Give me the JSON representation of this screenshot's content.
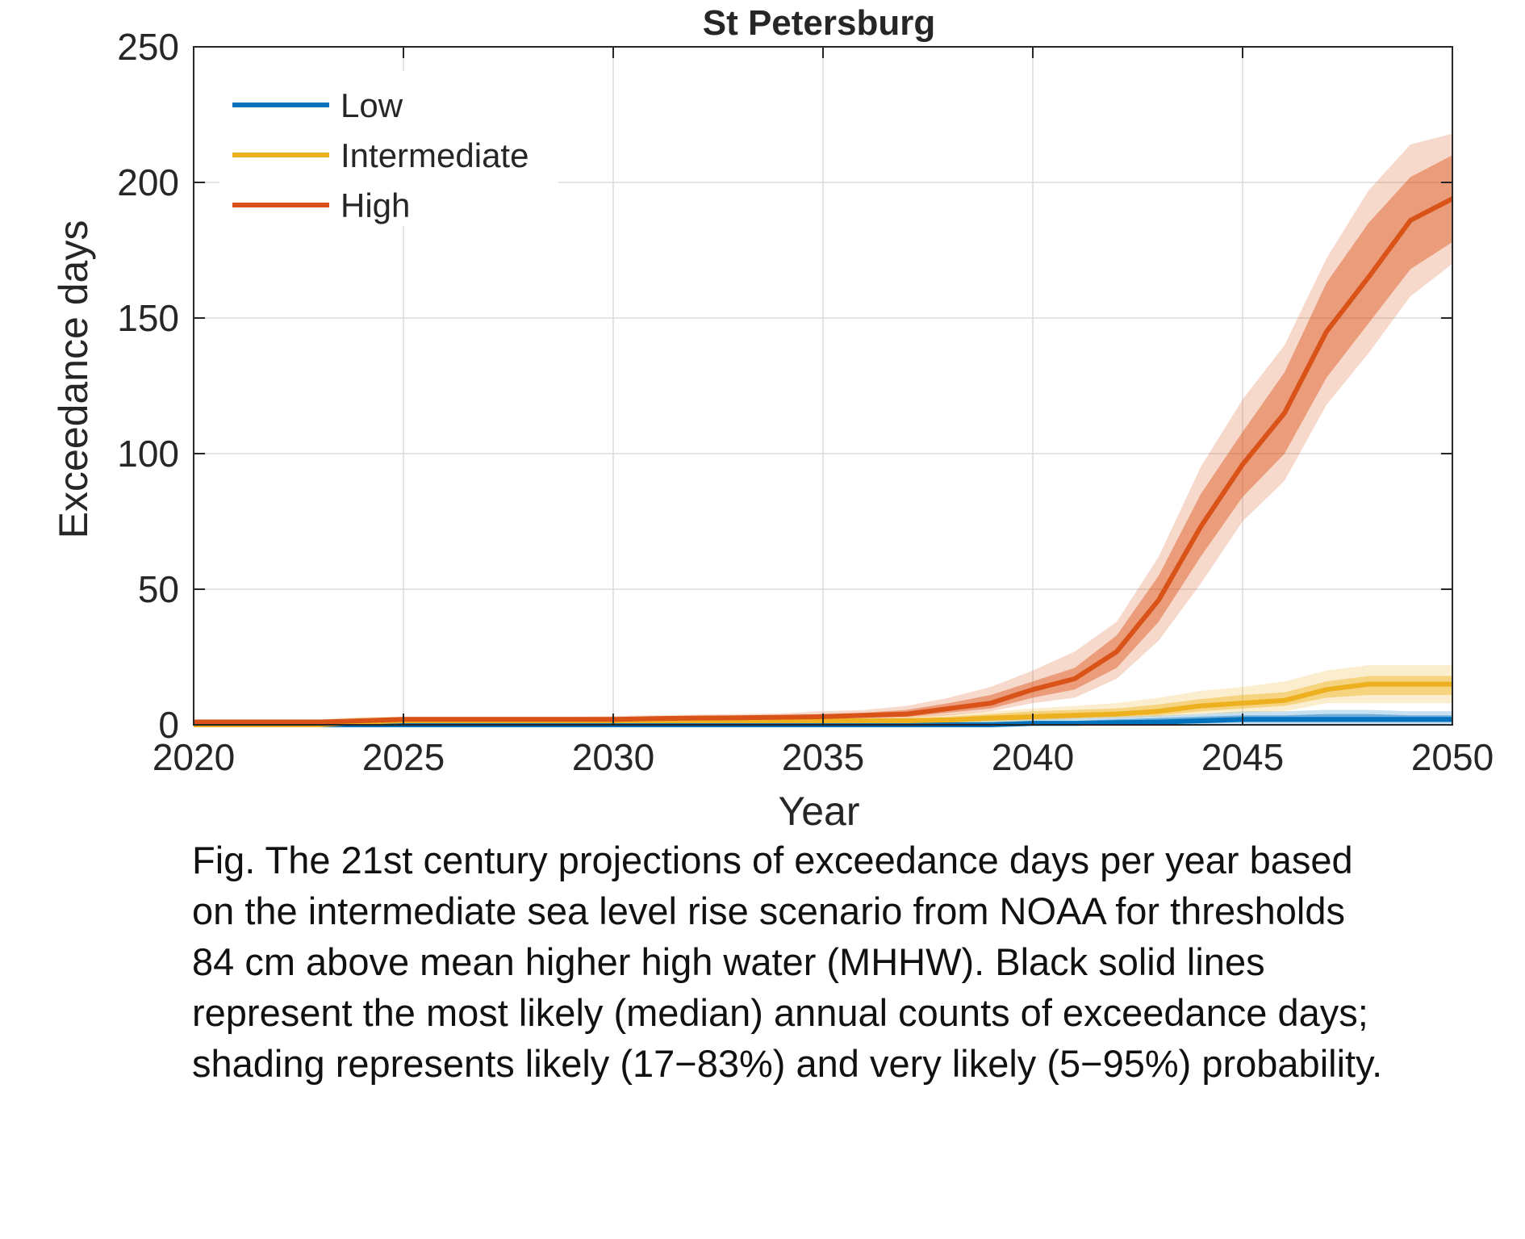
{
  "colors": {
    "low": "#0072BD",
    "intermediate": "#EDB120",
    "high": "#D95319",
    "axis": "#262626",
    "grid": "#dcdcdc",
    "text": "#262626"
  },
  "chart_data": {
    "type": "line",
    "title": "St  Petersburg",
    "xlabel": "Year",
    "ylabel": "Exceedance days",
    "xlim": [
      2020,
      2050
    ],
    "ylim": [
      0,
      250
    ],
    "xticks": [
      "2020",
      "2025",
      "2030",
      "2035",
      "2040",
      "2045",
      "2050"
    ],
    "yticks": [
      "0",
      "50",
      "100",
      "150",
      "200",
      "250"
    ],
    "grid": true,
    "legend_position": "top-left",
    "x": [
      2020,
      2021,
      2022,
      2023,
      2024,
      2025,
      2026,
      2027,
      2028,
      2029,
      2030,
      2031,
      2032,
      2033,
      2034,
      2035,
      2036,
      2037,
      2038,
      2039,
      2040,
      2041,
      2042,
      2043,
      2044,
      2045,
      2046,
      2047,
      2048,
      2049,
      2050
    ],
    "series": [
      {
        "name": "Low",
        "color": "#0072BD",
        "median": [
          0,
          0,
          0,
          0,
          0,
          0,
          0,
          0,
          0,
          0,
          0,
          0,
          0,
          0,
          0,
          0,
          0,
          0,
          0,
          0,
          0.5,
          0.5,
          0.8,
          1,
          1.5,
          2,
          2,
          2,
          2,
          2,
          2
        ],
        "likely_lo": [
          0,
          0,
          0,
          0,
          0,
          0,
          0,
          0,
          0,
          0,
          0,
          0,
          0,
          0,
          0,
          0,
          0,
          0,
          0,
          0,
          0,
          0,
          0,
          0.3,
          0.5,
          1,
          1,
          1,
          1,
          1,
          1
        ],
        "likely_hi": [
          1,
          1,
          1,
          1,
          1,
          1,
          1,
          1,
          1,
          1,
          1,
          1,
          1,
          1,
          1,
          1,
          1,
          1,
          1,
          1,
          1.5,
          1.5,
          2,
          2.5,
          3,
          3.5,
          3.5,
          4,
          4,
          3.5,
          3.5
        ],
        "vlikely_lo": [
          0,
          0,
          0,
          0,
          0,
          0,
          0,
          0,
          0,
          0,
          0,
          0,
          0,
          0,
          0,
          0,
          0,
          0,
          0,
          0,
          0,
          0,
          0,
          0,
          0,
          0,
          0,
          0,
          0,
          0,
          0
        ],
        "vlikely_hi": [
          2,
          2,
          2,
          2,
          2,
          2,
          2,
          2,
          2,
          2,
          2,
          2,
          2,
          2,
          2,
          2,
          2,
          2,
          2,
          2,
          2.5,
          2.5,
          3,
          3.5,
          4,
          5,
          5,
          5.5,
          5.5,
          5,
          5
        ]
      },
      {
        "name": "Intermediate",
        "color": "#EDB120",
        "median": [
          0,
          0,
          0,
          0,
          1,
          1.5,
          1.5,
          1.5,
          1.5,
          1.5,
          1.5,
          1.5,
          1.5,
          1.5,
          1.5,
          1.5,
          1.5,
          1.5,
          1.8,
          2.5,
          3,
          3.5,
          4,
          5,
          7,
          8,
          9,
          13,
          15,
          15,
          15
        ],
        "likely_lo": [
          0,
          0,
          0,
          0,
          0.5,
          1,
          1,
          1,
          1,
          1,
          1,
          1,
          1,
          1,
          1,
          1,
          1,
          1,
          1.2,
          1.5,
          2,
          2.5,
          3,
          3.5,
          5,
          6,
          7,
          10,
          11,
          11,
          11
        ],
        "likely_hi": [
          1,
          1,
          1,
          1,
          2,
          2,
          2,
          2,
          2,
          2,
          2,
          2,
          2,
          2,
          2,
          2,
          2,
          2.5,
          3,
          4,
          5,
          5.5,
          6,
          7.5,
          9.5,
          11,
          12,
          16,
          18,
          18,
          18
        ],
        "vlikely_lo": [
          0,
          0,
          0,
          0,
          0,
          0.5,
          0.5,
          0.5,
          0.5,
          0.5,
          0.5,
          0.5,
          0.5,
          0.5,
          0.5,
          0.5,
          0.5,
          0.5,
          0.8,
          1,
          1.5,
          2,
          2.5,
          3,
          4,
          4.5,
          5,
          8,
          8,
          8,
          8
        ],
        "vlikely_hi": [
          2,
          2,
          2,
          2,
          3,
          3,
          3,
          3,
          3,
          3,
          3,
          3,
          3,
          3,
          3,
          3,
          3,
          3.5,
          4,
          5,
          6,
          7,
          8,
          10,
          12.5,
          14,
          16,
          20,
          22,
          22,
          22
        ]
      },
      {
        "name": "High",
        "color": "#D95319",
        "median": [
          1,
          1,
          1,
          1,
          1.5,
          2,
          2,
          2,
          2,
          2,
          2,
          2.3,
          2.5,
          2.6,
          2.8,
          3,
          3.5,
          4,
          6,
          8,
          13,
          17,
          27,
          46,
          73,
          96,
          115,
          145,
          165,
          186,
          194
        ],
        "likely_lo": [
          0.5,
          0.5,
          0.5,
          0.5,
          1,
          1.5,
          1.5,
          1.5,
          1.5,
          1.5,
          1.5,
          1.8,
          2,
          2,
          2.2,
          2.5,
          2.8,
          3,
          4.5,
          6,
          10,
          13,
          21,
          38,
          62,
          84,
          100,
          128,
          148,
          168,
          178
        ],
        "likely_hi": [
          1.5,
          1.5,
          1.5,
          1.5,
          2,
          2.5,
          2.5,
          2.5,
          2.5,
          2.5,
          2.5,
          2.8,
          3,
          3.2,
          3.5,
          4,
          4.5,
          5.5,
          8,
          11,
          16,
          21,
          33,
          55,
          85,
          108,
          130,
          163,
          185,
          202,
          210
        ],
        "vlikely_lo": [
          0,
          0,
          0,
          0,
          0.5,
          1,
          1,
          1,
          1,
          1,
          1,
          1.2,
          1.5,
          1.5,
          1.6,
          1.8,
          2,
          2.5,
          3.5,
          5,
          8,
          10,
          17,
          31,
          52,
          75,
          90,
          118,
          137,
          158,
          170
        ],
        "vlikely_hi": [
          2,
          2,
          2,
          2,
          2.5,
          3,
          3,
          3,
          3,
          3,
          3.2,
          3.5,
          3.8,
          4,
          4.2,
          5,
          5.5,
          7,
          10,
          14,
          20,
          27,
          38,
          62,
          95,
          120,
          140,
          172,
          197,
          214,
          218
        ]
      }
    ]
  },
  "caption": {
    "lines": [
      "Fig. The 21st century projections of exceedance days per year based",
      "on the intermediate sea level rise scenario from NOAA for thresholds",
      "84 cm above mean higher high water (MHHW). Black solid lines",
      "represent the most likely (median) annual counts of exceedance days;",
      "shading represents likely (17−83%) and very likely (5−95%) probability."
    ]
  }
}
